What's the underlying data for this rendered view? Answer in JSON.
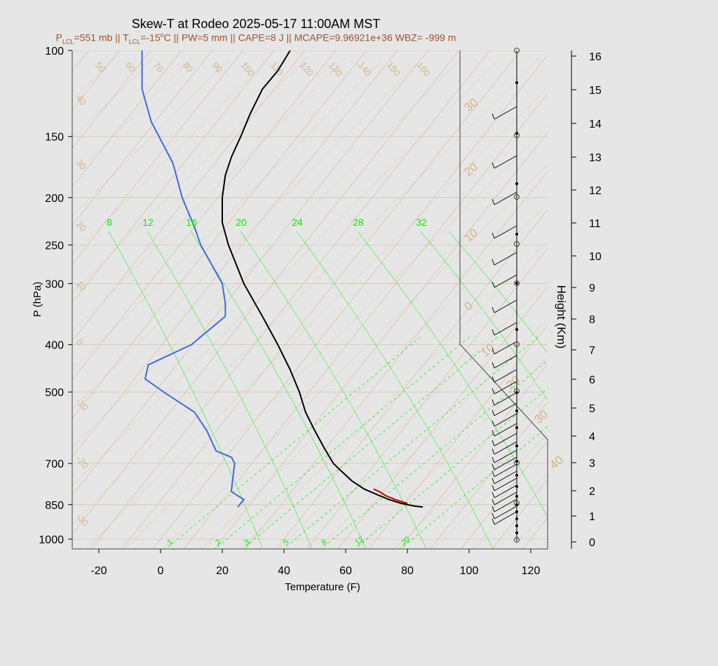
{
  "title": "Skew-T at Rodeo 2025-05-17 11:00AM MST",
  "subtitle": {
    "p_lcl_prefix": "P",
    "p_lcl_sub": "LCL",
    "p_lcl_value": "=551 mb || T",
    "t_lcl_sub": "LCL",
    "t_lcl_value": "=-15",
    "deg": "o",
    "rest": "C || PW=5 mm || CAPE=8 J || MCAPE=9.96921e+36 WBZ= -999 m"
  },
  "colors": {
    "background": "#e6e6e6",
    "temperature": "#000000",
    "dewpoint": "#4169e1",
    "parcel": "#cc0000",
    "isotherm": "#d2b48c",
    "mixing_ratio": "#00ee00",
    "wind": "#000000"
  },
  "chart_data": {
    "type": "line",
    "title": "Skew-T at Rodeo 2025-05-17 11:00AM MST",
    "xlabel": "Temperature (F)",
    "ylabel": "P (hPa)",
    "y2label": "Height (Km)",
    "xlim": [
      -28,
      125
    ],
    "ylim_hpa": [
      1030,
      100
    ],
    "y_log": true,
    "x_ticks": [
      -20,
      0,
      20,
      40,
      60,
      80,
      100,
      120
    ],
    "y_ticks": [
      100,
      150,
      200,
      250,
      300,
      400,
      500,
      700,
      850,
      1000
    ],
    "height_ticks_km": [
      0,
      1,
      2,
      3,
      4,
      5,
      6,
      7,
      8,
      9,
      10,
      11,
      12,
      13,
      14,
      15,
      16
    ],
    "isotherm_labels_top": [
      50,
      60,
      70,
      80,
      90,
      100,
      110,
      120,
      130,
      140,
      150,
      160
    ],
    "isotherm_labels_left": [
      40,
      30,
      20,
      10,
      0,
      -10,
      -20,
      -30
    ],
    "isotherm_labels_right": [
      30,
      20,
      10,
      0,
      10,
      20,
      30,
      40
    ],
    "mixing_ratio_labels_top": [
      8,
      12,
      16,
      20,
      24,
      28,
      32
    ],
    "mixing_ratio_labels_bottom": [
      1,
      2,
      3,
      5,
      8,
      12,
      20
    ],
    "series": [
      {
        "name": "",
        "p": [
          860,
          855,
          845,
          830,
          810,
          790,
          760,
          720,
          700,
          650,
          600,
          550,
          500,
          450,
          400,
          350,
          300,
          250,
          225,
          200,
          180,
          165,
          150,
          135,
          120,
          110,
          100
        ],
        "t": [
          85,
          82,
          78,
          74,
          70,
          66,
          62,
          58,
          56,
          53,
          50,
          47,
          45,
          42,
          38,
          33,
          27,
          22,
          20,
          20,
          21,
          23,
          26,
          29,
          33,
          38,
          42
        ]
      },
      {
        "name": "",
        "p": [
          860,
          830,
          800,
          790,
          700,
          680,
          660,
          600,
          550,
          500,
          470,
          440,
          400,
          350,
          330,
          300,
          250,
          230,
          200,
          170,
          140,
          120,
          100
        ],
        "td": [
          25,
          27,
          23,
          23,
          24,
          23,
          18,
          15,
          11,
          1,
          -5,
          -4,
          10,
          21,
          21,
          20,
          13,
          11,
          7,
          4,
          -3,
          -6,
          -6
        ]
      },
      {
        "name": "",
        "p": [
          845,
          830,
          815,
          800,
          790
        ],
        "t": [
          80,
          76,
          73,
          71,
          69
        ]
      }
    ]
  }
}
